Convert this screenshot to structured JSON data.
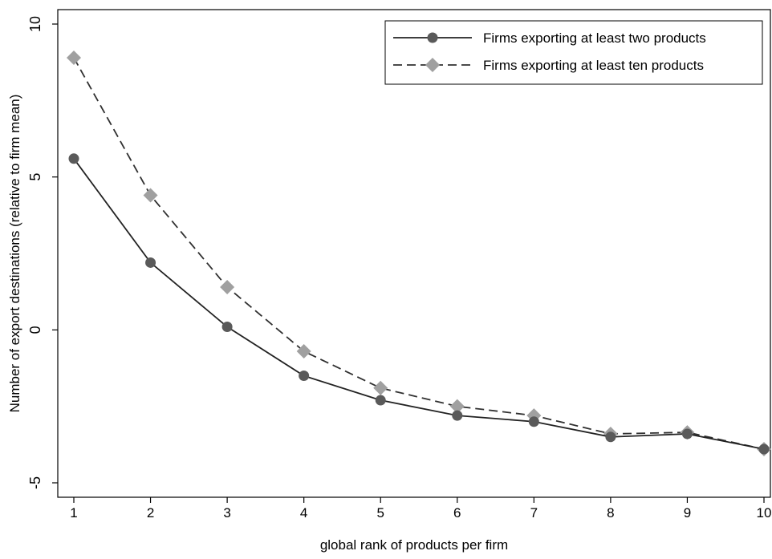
{
  "chart_data": {
    "type": "line",
    "title": "",
    "xlabel": "global rank of products per firm",
    "ylabel": "Number of export destinations (relative to firm mean)",
    "xlim": [
      1,
      10
    ],
    "ylim": [
      -5,
      10
    ],
    "x_ticks": [
      1,
      2,
      3,
      4,
      5,
      6,
      7,
      8,
      9,
      10
    ],
    "y_ticks": [
      -5,
      0,
      5,
      10
    ],
    "grid": false,
    "legend_position": "top-right",
    "x": [
      1,
      2,
      3,
      4,
      5,
      6,
      7,
      8,
      9,
      10
    ],
    "series": [
      {
        "name": "Firms exporting at least two products",
        "values": [
          5.6,
          2.2,
          0.1,
          -1.5,
          -2.3,
          -2.8,
          -3.0,
          -3.5,
          -3.4,
          -3.9
        ],
        "color": "#5a5a5a",
        "line_style": "solid",
        "marker": "circle"
      },
      {
        "name": "Firms exporting at least ten products",
        "values": [
          8.9,
          4.4,
          1.4,
          -0.7,
          -1.9,
          -2.5,
          -2.8,
          -3.4,
          -3.35,
          -3.9
        ],
        "color": "#a0a0a0",
        "line_color": "#303030",
        "line_style": "dashed",
        "marker": "diamond"
      }
    ]
  }
}
